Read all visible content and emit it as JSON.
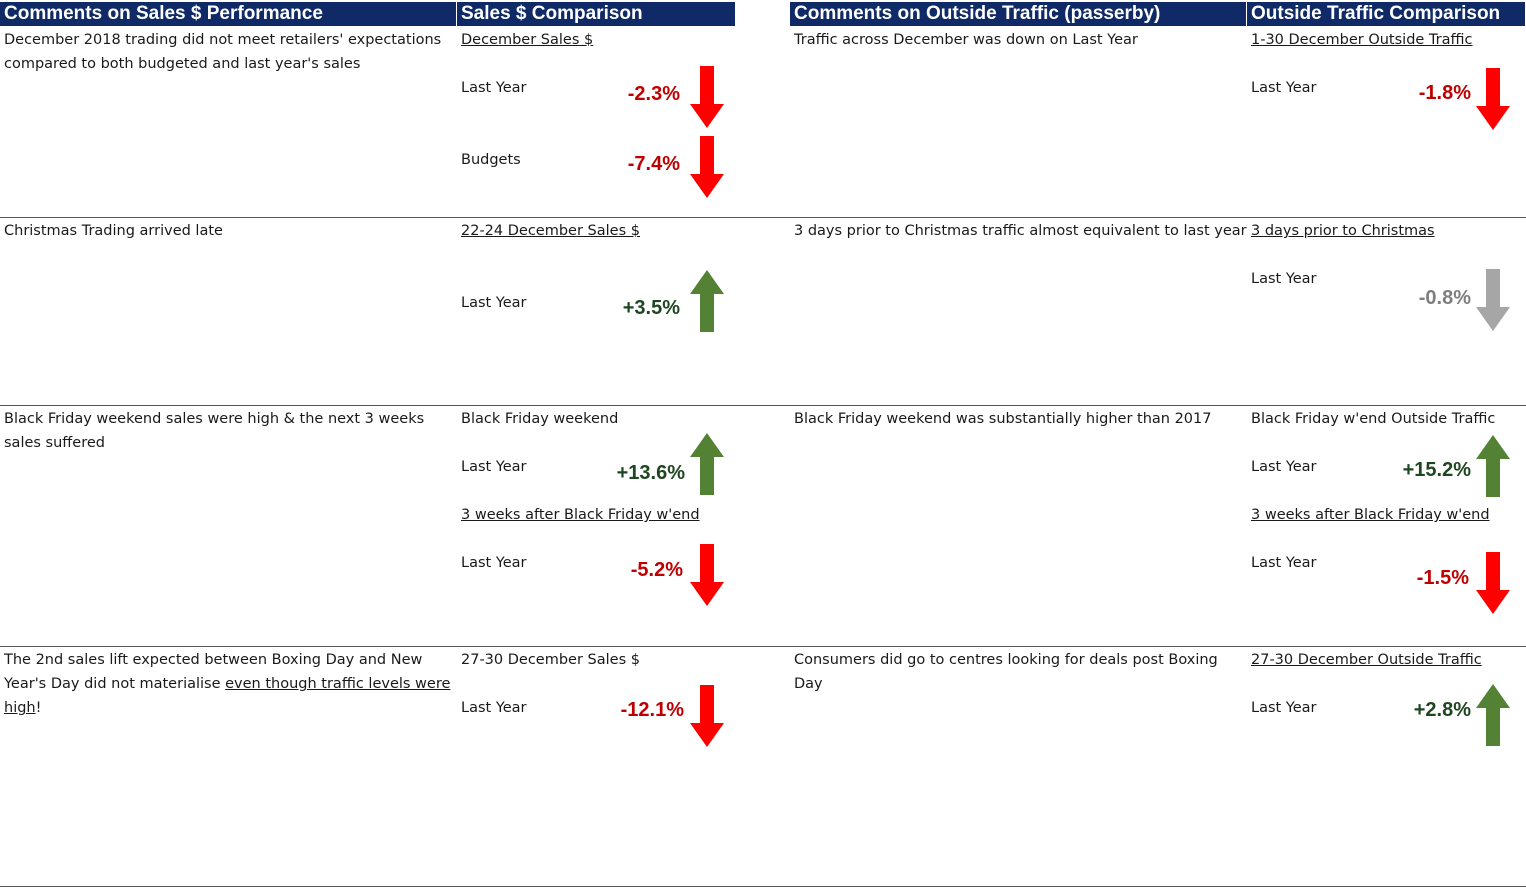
{
  "headers": {
    "sales_comments": "Comments on Sales $ Performance",
    "sales_comparison": "Sales $ Comparison",
    "traffic_comments": "Comments on Outside Traffic (passerby)",
    "traffic_comparison": "Outside Traffic Comparison"
  },
  "colors": {
    "down": "#ff0000",
    "up": "#548235",
    "neutral": "#a6a6a6",
    "header_bg": "#0f2a66"
  },
  "sections": [
    {
      "sales_comment": "December 2018 trading did not meet retailers' expectations compared to both budgeted and last year's sales",
      "sales_title": "December Sales $",
      "sales_metrics": [
        {
          "label": "Last Year",
          "value": "-2.3%",
          "direction": "down"
        },
        {
          "label": "Budgets",
          "value": "-7.4%",
          "direction": "down"
        }
      ],
      "traffic_comment": "Traffic across December was down on Last Year",
      "traffic_title": "1-30 December Outside Traffic",
      "traffic_metrics": [
        {
          "label": "Last Year",
          "value": "-1.8%",
          "direction": "down"
        }
      ]
    },
    {
      "sales_comment": "Christmas Trading arrived late",
      "sales_title": "22-24 December Sales $",
      "sales_metrics": [
        {
          "label": "Last Year",
          "value": "+3.5%",
          "direction": "up"
        }
      ],
      "traffic_comment": "3 days prior to Christmas traffic almost equivalent to last year",
      "traffic_title": "3 days prior to Christmas",
      "traffic_metrics": [
        {
          "label": "Last Year",
          "value": "-0.8%",
          "direction": "neutral"
        }
      ]
    },
    {
      "sales_comment": "Black Friday weekend sales were high & the next 3 weeks sales suffered",
      "sales_title": "Black Friday weekend",
      "sales_metrics": [
        {
          "label": "Last Year",
          "value": "+13.6%",
          "direction": "up"
        }
      ],
      "sales_subtitle": "3 weeks after Black Friday w'end",
      "sales_metrics_2": [
        {
          "label": "Last Year",
          "value": "-5.2%",
          "direction": "down"
        }
      ],
      "traffic_comment": "Black Friday weekend was substantially higher than 2017",
      "traffic_title": "Black Friday w'end Outside Traffic",
      "traffic_metrics": [
        {
          "label": "Last Year",
          "value": "+15.2%",
          "direction": "up"
        }
      ],
      "traffic_subtitle": "3 weeks after Black Friday w'end",
      "traffic_metrics_2": [
        {
          "label": "Last Year",
          "value": "-1.5%",
          "direction": "down"
        }
      ]
    },
    {
      "sales_comment_part1": "The 2nd sales lift expected between Boxing Day and New Year's Day did not materialise ",
      "sales_comment_part2": "even though traffic levels were high",
      "sales_comment_part3": "!",
      "sales_title": "27-30 December Sales $",
      "sales_metrics": [
        {
          "label": "Last Year",
          "value": "-12.1%",
          "direction": "down"
        }
      ],
      "traffic_comment": "Consumers did go to centres looking for deals post Boxing Day",
      "traffic_title": "27-30 December Outside Traffic",
      "traffic_metrics": [
        {
          "label": "Last Year",
          "value": "+2.8%",
          "direction": "up"
        }
      ]
    }
  ]
}
